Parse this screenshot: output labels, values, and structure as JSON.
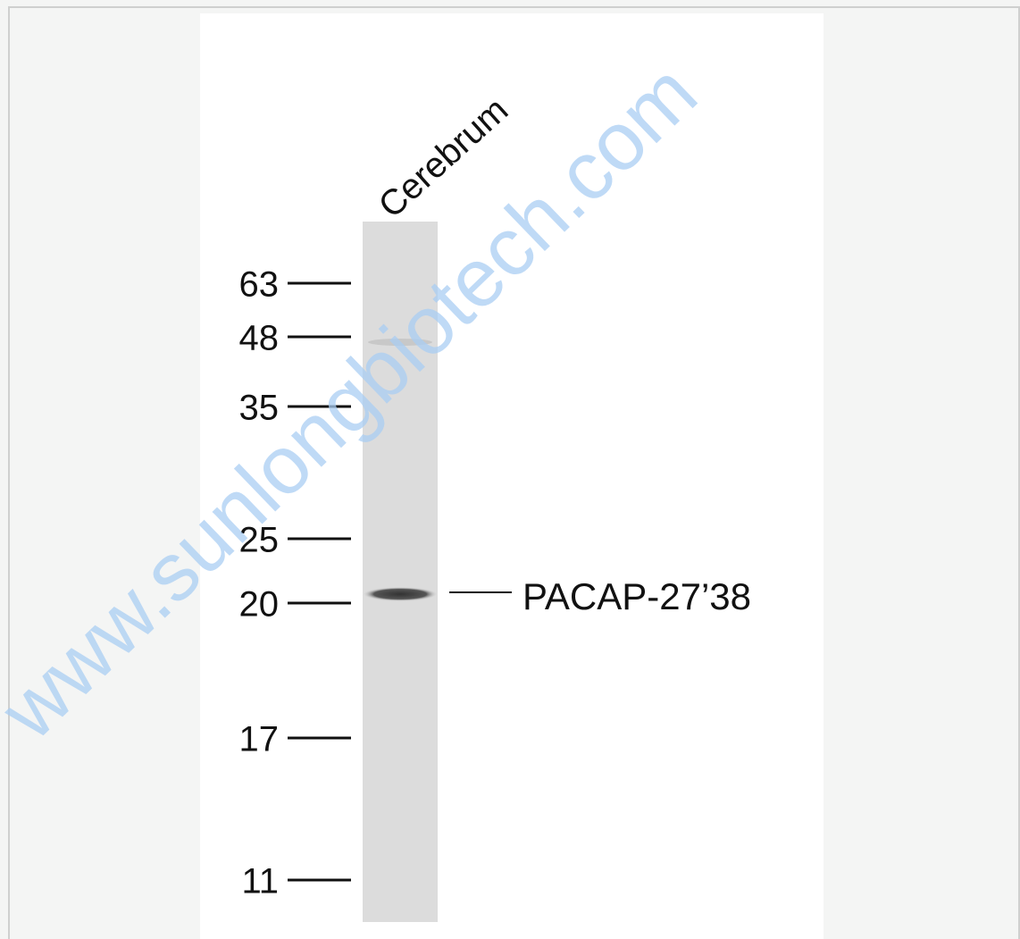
{
  "lane_label": "Cerebrum",
  "markers": [
    63,
    48,
    35,
    25,
    20,
    17,
    11
  ],
  "band_label": "PACAP-27’38",
  "watermark": "www.sunlongbiotech.com"
}
